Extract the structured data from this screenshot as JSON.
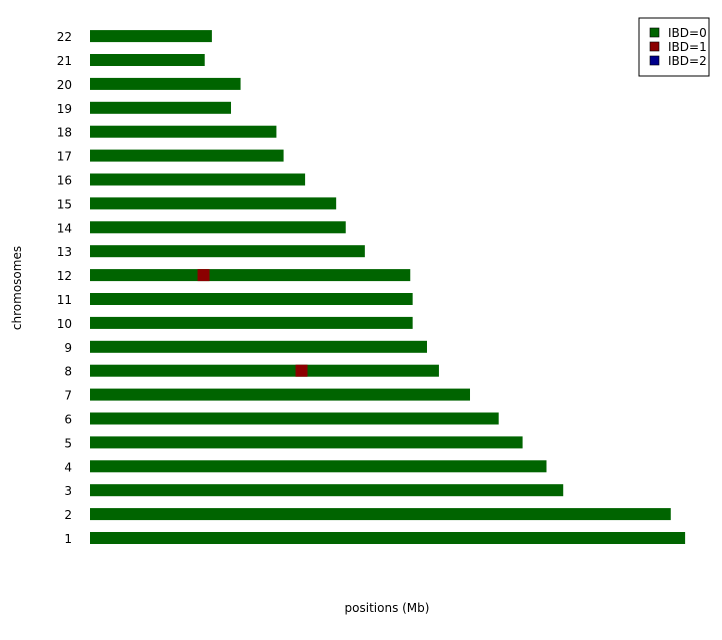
{
  "chart_data": {
    "type": "bar",
    "orientation": "horizontal",
    "title": "",
    "xlabel": "positions (Mb)",
    "ylabel": "chromosomes",
    "grid": false,
    "legend_position": "top-right",
    "xlim": [
      0,
      250
    ],
    "categories": [
      "1",
      "2",
      "3",
      "4",
      "5",
      "6",
      "7",
      "8",
      "9",
      "10",
      "11",
      "12",
      "13",
      "14",
      "15",
      "16",
      "17",
      "18",
      "19",
      "20",
      "21",
      "22"
    ],
    "chromosome_lengths_mb": [
      249,
      243,
      198,
      191,
      181,
      171,
      159,
      146,
      141,
      135,
      135,
      134,
      115,
      107,
      103,
      90,
      81,
      78,
      59,
      63,
      48,
      51
    ],
    "legend": [
      {
        "label": "IBD=0",
        "color": "#006400"
      },
      {
        "label": "IBD=1",
        "color": "#8b0000"
      },
      {
        "label": "IBD=2",
        "color": "#00008b"
      }
    ],
    "segments": [
      {
        "chromosome": "12",
        "start_mb": 45,
        "end_mb": 50,
        "ibd": "IBD=1"
      },
      {
        "chromosome": "8",
        "start_mb": 86,
        "end_mb": 91,
        "ibd": "IBD=1"
      }
    ]
  }
}
